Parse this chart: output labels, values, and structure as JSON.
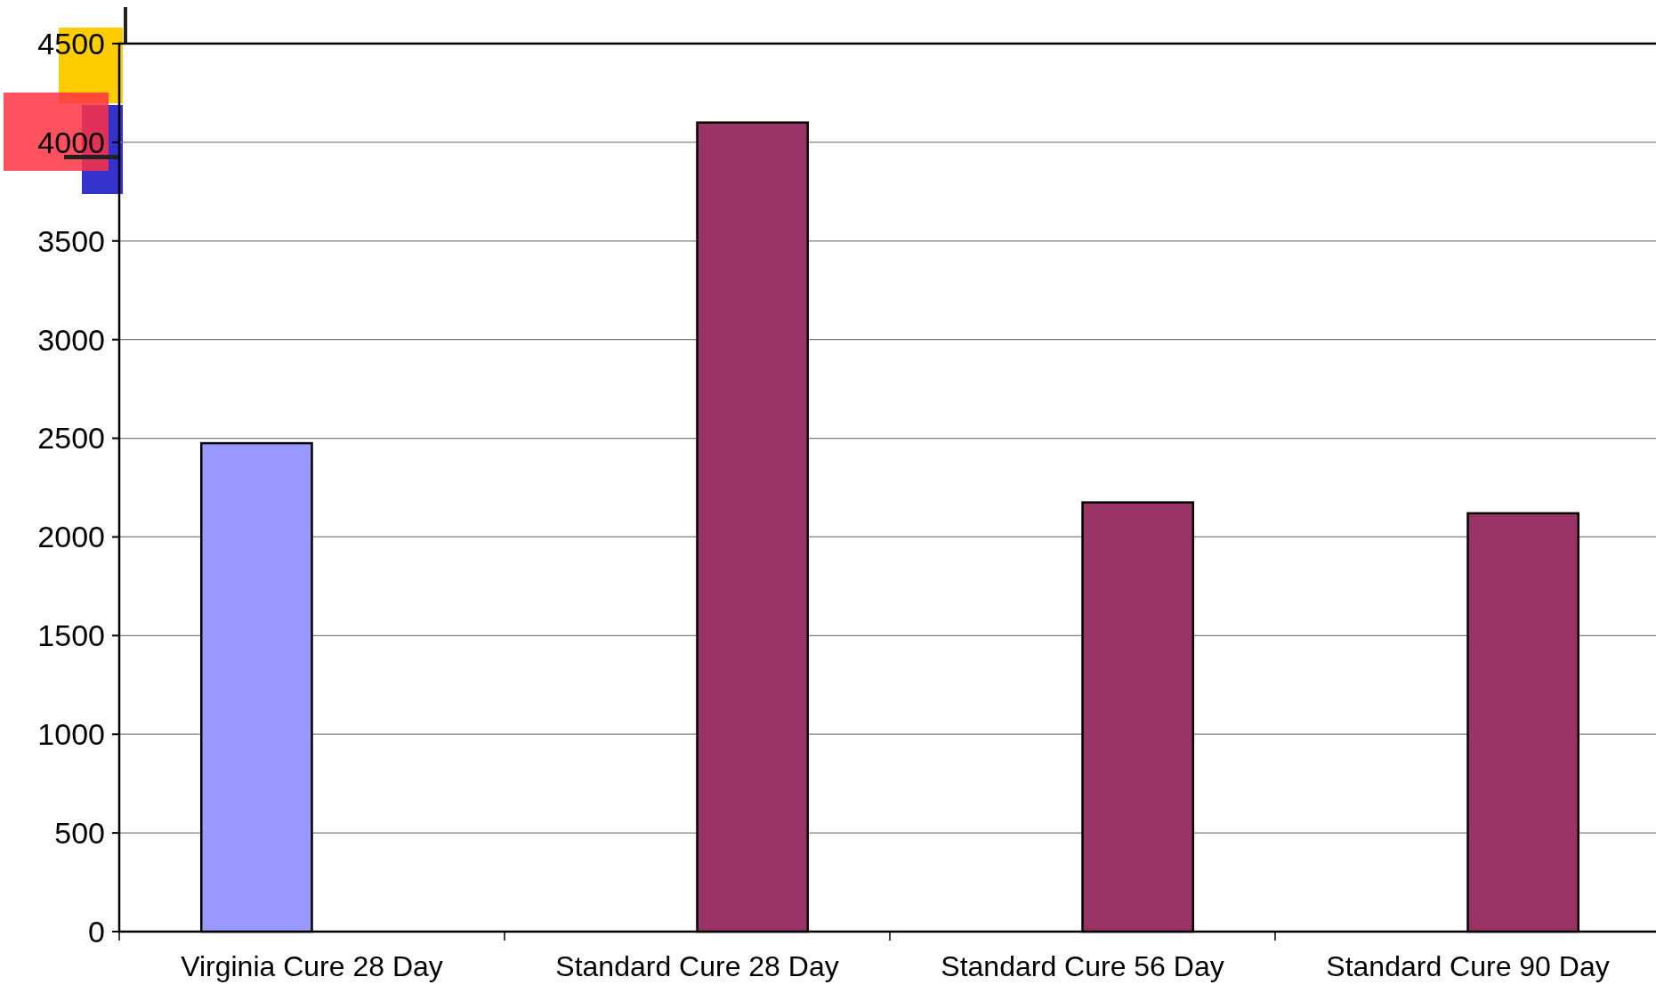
{
  "chart_data": {
    "type": "bar",
    "categories": [
      "Virginia Cure 28 Day",
      "Standard Cure 28 Day",
      "Standard Cure 56 Day",
      "Standard Cure 90 Day"
    ],
    "series": [
      {
        "color": "#9999ff",
        "values": [
          2475,
          null,
          null,
          null
        ]
      },
      {
        "color": "#993366",
        "values": [
          null,
          4100,
          2175,
          2120
        ]
      }
    ],
    "ylim": [
      0,
      4500
    ],
    "yticks": [
      0,
      500,
      1000,
      1500,
      2000,
      2500,
      3000,
      3500,
      4000,
      4500
    ],
    "grid": "y"
  }
}
